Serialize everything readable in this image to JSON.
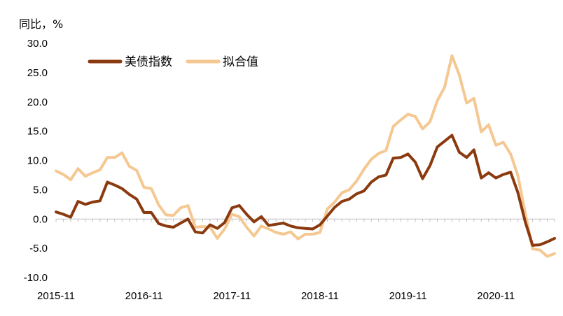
{
  "chart_data": {
    "type": "line",
    "ylabel": "同比，%",
    "ylim": [
      -10,
      30
    ],
    "yticks": [
      "30.0",
      "25.0",
      "20.0",
      "15.0",
      "10.0",
      "5.0",
      "0.0",
      "-5.0",
      "-10.0"
    ],
    "ytick_values": [
      30,
      25,
      20,
      15,
      10,
      5,
      0,
      -5,
      -10
    ],
    "xtick_labels": [
      "2015-11",
      "2016-11",
      "2017-11",
      "2018-11",
      "2019-11",
      "2020-11"
    ],
    "xtick_index": [
      0,
      12,
      24,
      36,
      48,
      60
    ],
    "legend_position": "top-left",
    "series": [
      {
        "name": "美债指数",
        "color": "#8B3A0F",
        "values": [
          1.2,
          0.8,
          0.3,
          3.0,
          2.5,
          2.9,
          3.1,
          6.3,
          5.8,
          5.2,
          4.2,
          3.4,
          1.1,
          1.1,
          -0.8,
          -1.2,
          -1.4,
          -0.7,
          0.0,
          -2.2,
          -2.4,
          -1.0,
          -1.6,
          -0.6,
          1.9,
          2.3,
          0.8,
          -0.5,
          0.4,
          -1.1,
          -0.9,
          -0.7,
          -1.2,
          -1.5,
          -1.6,
          -1.7,
          -1.0,
          0.5,
          2.0,
          3.0,
          3.4,
          4.3,
          4.8,
          6.3,
          7.2,
          7.5,
          10.4,
          10.5,
          11.1,
          9.7,
          6.9,
          9.1,
          12.3,
          13.3,
          14.3,
          11.4,
          10.5,
          11.8,
          7.0,
          7.9,
          7.0,
          7.6,
          8.0,
          4.5,
          -0.5,
          -4.5,
          -4.4,
          -3.9,
          -3.3
        ]
      },
      {
        "name": "拟合值",
        "color": "#F5C892",
        "values": [
          8.2,
          7.6,
          6.7,
          8.6,
          7.3,
          7.9,
          8.4,
          10.5,
          10.5,
          11.3,
          9.0,
          8.3,
          5.4,
          5.2,
          2.4,
          0.7,
          0.6,
          1.9,
          2.3,
          -1.4,
          -1.3,
          -1.4,
          -3.3,
          -1.7,
          0.8,
          0.4,
          -1.4,
          -2.9,
          -1.2,
          -1.7,
          -2.3,
          -2.6,
          -2.2,
          -3.4,
          -2.6,
          -2.6,
          -2.3,
          1.7,
          2.9,
          4.5,
          5.0,
          6.5,
          8.5,
          10.2,
          11.2,
          11.7,
          15.8,
          16.9,
          17.9,
          17.5,
          15.4,
          16.6,
          20.2,
          22.5,
          27.9,
          24.6,
          19.8,
          20.6,
          14.9,
          16.1,
          12.6,
          13.1,
          11.1,
          7.4,
          1.0,
          -5.1,
          -5.3,
          -6.4,
          -5.9
        ]
      }
    ]
  }
}
